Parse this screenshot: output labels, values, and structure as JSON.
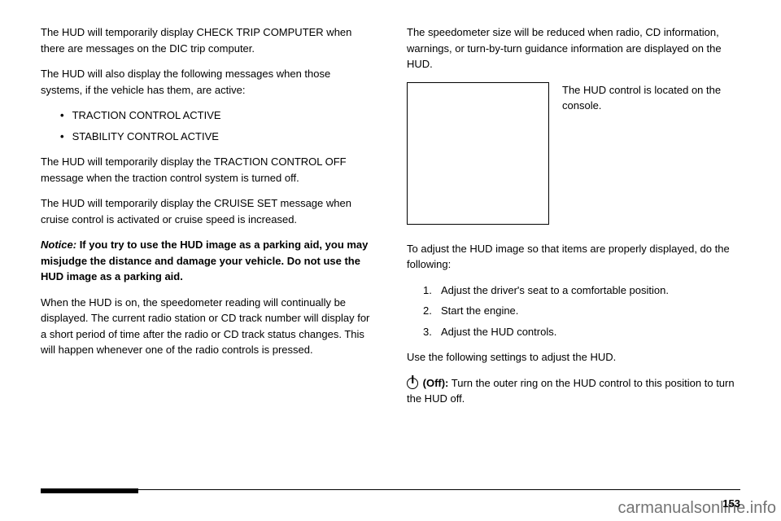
{
  "left": {
    "p1": "The HUD will temporarily display CHECK TRIP COMPUTER when there are messages on the DIC trip computer.",
    "p2": "The HUD will also display the following messages when those systems, if the vehicle has them, are active:",
    "bullets": [
      "TRACTION CONTROL ACTIVE",
      "STABILITY CONTROL ACTIVE"
    ],
    "p3": "The HUD will temporarily display the TRACTION CONTROL OFF message when the traction control system is turned off.",
    "p4": "The HUD will temporarily display the CRUISE SET message when cruise control is activated or cruise speed is increased.",
    "notice_label": "Notice:",
    "notice_text": "If you try to use the HUD image as a parking aid, you may misjudge the distance and damage your vehicle. Do not use the HUD image as a parking aid.",
    "p5": "When the HUD is on, the speedometer reading will continually be displayed. The current radio station or CD track number will display for a short period of time after the radio or CD track status changes. This will happen whenever one of the radio controls is pressed."
  },
  "right": {
    "p1": "The speedometer size will be reduced when radio, CD information, warnings, or turn-by-turn guidance information are displayed on the HUD.",
    "image_caption": "The HUD control is located on the console.",
    "p2": "To adjust the HUD image so that items are properly displayed, do the following:",
    "steps": [
      "Adjust the driver's seat to a comfortable position.",
      "Start the engine.",
      "Adjust the HUD controls."
    ],
    "p3": "Use the following settings to adjust the HUD.",
    "off_label": "(Off):",
    "off_text": "Turn the outer ring on the HUD control to this position to turn the HUD off."
  },
  "page_number": "153",
  "watermark": "carmanualsonline.info"
}
